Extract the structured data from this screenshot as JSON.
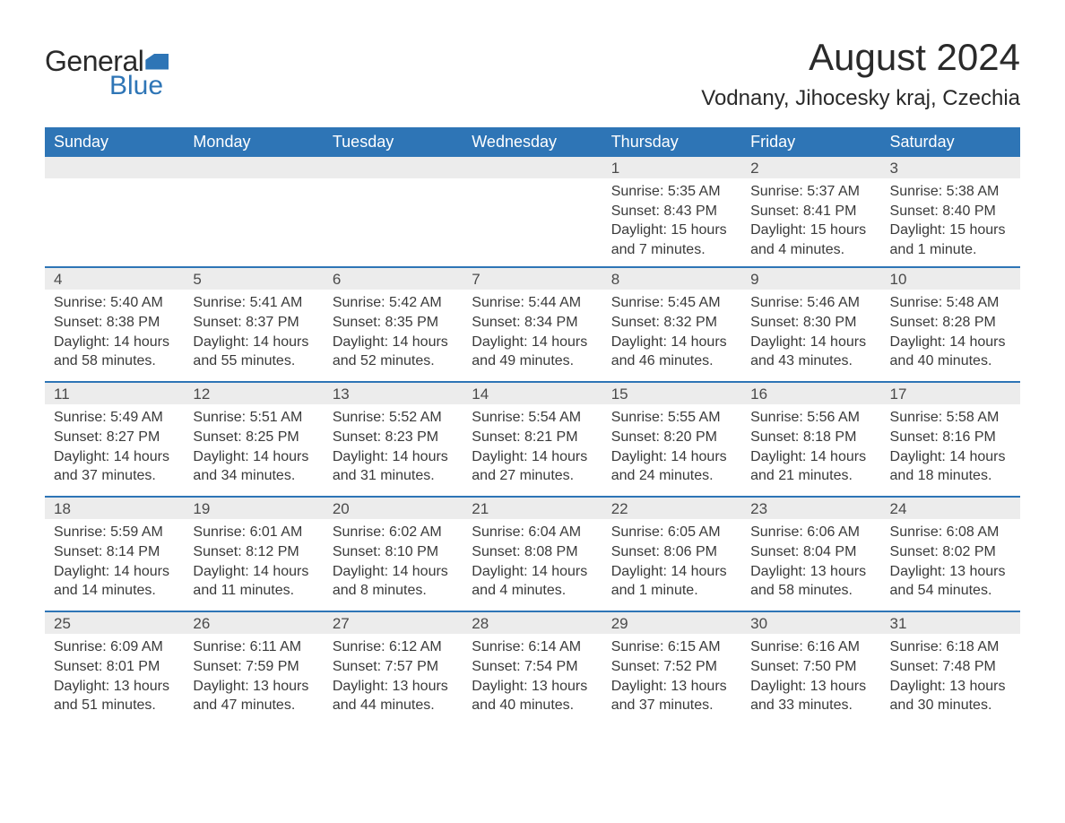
{
  "brand": {
    "text1": "General",
    "text2": "Blue",
    "accent_color": "#2e75b6"
  },
  "title": "August 2024",
  "location": "Vodnany, Jihocesky kraj, Czechia",
  "colors": {
    "header_bg": "#2e75b6",
    "header_text": "#ffffff",
    "strip_bg": "#ececec",
    "week_border": "#2e75b6",
    "text": "#333333",
    "bg": "#ffffff"
  },
  "fonts": {
    "title_size": 42,
    "location_size": 24,
    "dayheader_size": 18,
    "body_size": 16
  },
  "day_headers": [
    "Sunday",
    "Monday",
    "Tuesday",
    "Wednesday",
    "Thursday",
    "Friday",
    "Saturday"
  ],
  "weeks": [
    [
      {
        "day": "",
        "sunrise": "",
        "sunset": "",
        "daylight": ""
      },
      {
        "day": "",
        "sunrise": "",
        "sunset": "",
        "daylight": ""
      },
      {
        "day": "",
        "sunrise": "",
        "sunset": "",
        "daylight": ""
      },
      {
        "day": "",
        "sunrise": "",
        "sunset": "",
        "daylight": ""
      },
      {
        "day": "1",
        "sunrise": "Sunrise: 5:35 AM",
        "sunset": "Sunset: 8:43 PM",
        "daylight": "Daylight: 15 hours and 7 minutes."
      },
      {
        "day": "2",
        "sunrise": "Sunrise: 5:37 AM",
        "sunset": "Sunset: 8:41 PM",
        "daylight": "Daylight: 15 hours and 4 minutes."
      },
      {
        "day": "3",
        "sunrise": "Sunrise: 5:38 AM",
        "sunset": "Sunset: 8:40 PM",
        "daylight": "Daylight: 15 hours and 1 minute."
      }
    ],
    [
      {
        "day": "4",
        "sunrise": "Sunrise: 5:40 AM",
        "sunset": "Sunset: 8:38 PM",
        "daylight": "Daylight: 14 hours and 58 minutes."
      },
      {
        "day": "5",
        "sunrise": "Sunrise: 5:41 AM",
        "sunset": "Sunset: 8:37 PM",
        "daylight": "Daylight: 14 hours and 55 minutes."
      },
      {
        "day": "6",
        "sunrise": "Sunrise: 5:42 AM",
        "sunset": "Sunset: 8:35 PM",
        "daylight": "Daylight: 14 hours and 52 minutes."
      },
      {
        "day": "7",
        "sunrise": "Sunrise: 5:44 AM",
        "sunset": "Sunset: 8:34 PM",
        "daylight": "Daylight: 14 hours and 49 minutes."
      },
      {
        "day": "8",
        "sunrise": "Sunrise: 5:45 AM",
        "sunset": "Sunset: 8:32 PM",
        "daylight": "Daylight: 14 hours and 46 minutes."
      },
      {
        "day": "9",
        "sunrise": "Sunrise: 5:46 AM",
        "sunset": "Sunset: 8:30 PM",
        "daylight": "Daylight: 14 hours and 43 minutes."
      },
      {
        "day": "10",
        "sunrise": "Sunrise: 5:48 AM",
        "sunset": "Sunset: 8:28 PM",
        "daylight": "Daylight: 14 hours and 40 minutes."
      }
    ],
    [
      {
        "day": "11",
        "sunrise": "Sunrise: 5:49 AM",
        "sunset": "Sunset: 8:27 PM",
        "daylight": "Daylight: 14 hours and 37 minutes."
      },
      {
        "day": "12",
        "sunrise": "Sunrise: 5:51 AM",
        "sunset": "Sunset: 8:25 PM",
        "daylight": "Daylight: 14 hours and 34 minutes."
      },
      {
        "day": "13",
        "sunrise": "Sunrise: 5:52 AM",
        "sunset": "Sunset: 8:23 PM",
        "daylight": "Daylight: 14 hours and 31 minutes."
      },
      {
        "day": "14",
        "sunrise": "Sunrise: 5:54 AM",
        "sunset": "Sunset: 8:21 PM",
        "daylight": "Daylight: 14 hours and 27 minutes."
      },
      {
        "day": "15",
        "sunrise": "Sunrise: 5:55 AM",
        "sunset": "Sunset: 8:20 PM",
        "daylight": "Daylight: 14 hours and 24 minutes."
      },
      {
        "day": "16",
        "sunrise": "Sunrise: 5:56 AM",
        "sunset": "Sunset: 8:18 PM",
        "daylight": "Daylight: 14 hours and 21 minutes."
      },
      {
        "day": "17",
        "sunrise": "Sunrise: 5:58 AM",
        "sunset": "Sunset: 8:16 PM",
        "daylight": "Daylight: 14 hours and 18 minutes."
      }
    ],
    [
      {
        "day": "18",
        "sunrise": "Sunrise: 5:59 AM",
        "sunset": "Sunset: 8:14 PM",
        "daylight": "Daylight: 14 hours and 14 minutes."
      },
      {
        "day": "19",
        "sunrise": "Sunrise: 6:01 AM",
        "sunset": "Sunset: 8:12 PM",
        "daylight": "Daylight: 14 hours and 11 minutes."
      },
      {
        "day": "20",
        "sunrise": "Sunrise: 6:02 AM",
        "sunset": "Sunset: 8:10 PM",
        "daylight": "Daylight: 14 hours and 8 minutes."
      },
      {
        "day": "21",
        "sunrise": "Sunrise: 6:04 AM",
        "sunset": "Sunset: 8:08 PM",
        "daylight": "Daylight: 14 hours and 4 minutes."
      },
      {
        "day": "22",
        "sunrise": "Sunrise: 6:05 AM",
        "sunset": "Sunset: 8:06 PM",
        "daylight": "Daylight: 14 hours and 1 minute."
      },
      {
        "day": "23",
        "sunrise": "Sunrise: 6:06 AM",
        "sunset": "Sunset: 8:04 PM",
        "daylight": "Daylight: 13 hours and 58 minutes."
      },
      {
        "day": "24",
        "sunrise": "Sunrise: 6:08 AM",
        "sunset": "Sunset: 8:02 PM",
        "daylight": "Daylight: 13 hours and 54 minutes."
      }
    ],
    [
      {
        "day": "25",
        "sunrise": "Sunrise: 6:09 AM",
        "sunset": "Sunset: 8:01 PM",
        "daylight": "Daylight: 13 hours and 51 minutes."
      },
      {
        "day": "26",
        "sunrise": "Sunrise: 6:11 AM",
        "sunset": "Sunset: 7:59 PM",
        "daylight": "Daylight: 13 hours and 47 minutes."
      },
      {
        "day": "27",
        "sunrise": "Sunrise: 6:12 AM",
        "sunset": "Sunset: 7:57 PM",
        "daylight": "Daylight: 13 hours and 44 minutes."
      },
      {
        "day": "28",
        "sunrise": "Sunrise: 6:14 AM",
        "sunset": "Sunset: 7:54 PM",
        "daylight": "Daylight: 13 hours and 40 minutes."
      },
      {
        "day": "29",
        "sunrise": "Sunrise: 6:15 AM",
        "sunset": "Sunset: 7:52 PM",
        "daylight": "Daylight: 13 hours and 37 minutes."
      },
      {
        "day": "30",
        "sunrise": "Sunrise: 6:16 AM",
        "sunset": "Sunset: 7:50 PM",
        "daylight": "Daylight: 13 hours and 33 minutes."
      },
      {
        "day": "31",
        "sunrise": "Sunrise: 6:18 AM",
        "sunset": "Sunset: 7:48 PM",
        "daylight": "Daylight: 13 hours and 30 minutes."
      }
    ]
  ]
}
